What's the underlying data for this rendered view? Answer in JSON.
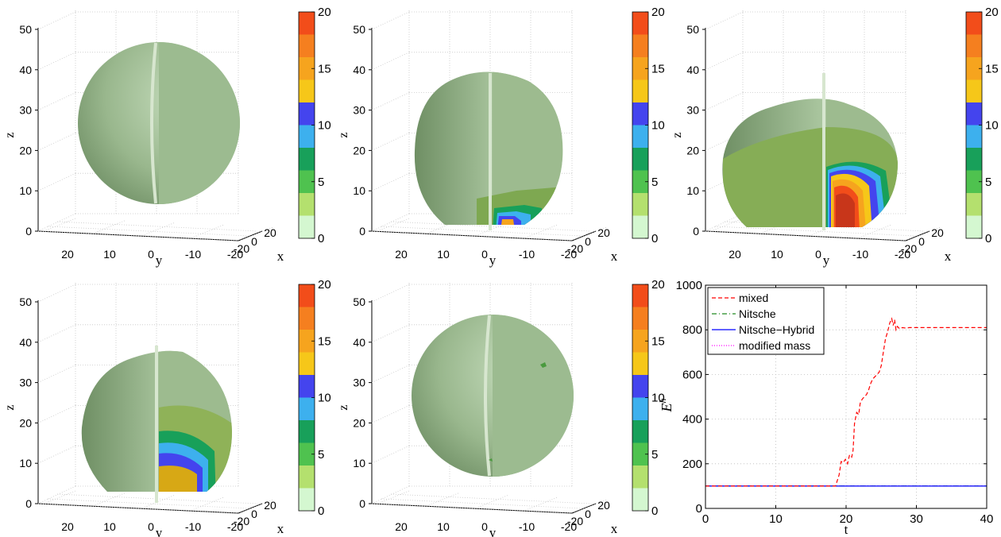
{
  "colorbar": {
    "ticks": [
      "0",
      "5",
      "10",
      "15",
      "20"
    ],
    "colors": [
      "#d4f7d0",
      "#b4e06e",
      "#4fc24f",
      "#18a05a",
      "#3db0ee",
      "#4444ee",
      "#f6c719",
      "#f6a41e",
      "#f57f1f",
      "#f24d1a"
    ]
  },
  "surface_panels": [
    {
      "z_ticks": [
        "0",
        "10",
        "20",
        "30",
        "40",
        "50"
      ],
      "y_ticks": [
        "20",
        "10",
        "0",
        "-10",
        "-20"
      ],
      "x_ticks": [
        "-20",
        "0",
        "20"
      ],
      "z_label": "z",
      "y_label": "y",
      "x_label": "x"
    },
    {
      "z_ticks": [
        "0",
        "10",
        "20",
        "30",
        "40",
        "50"
      ],
      "y_ticks": [
        "20",
        "10",
        "0",
        "-10",
        "-20"
      ],
      "x_ticks": [
        "-20",
        "0",
        "20"
      ],
      "z_label": "z",
      "y_label": "y",
      "x_label": "x"
    },
    {
      "z_ticks": [
        "0",
        "10",
        "20",
        "30",
        "40",
        "50"
      ],
      "y_ticks": [
        "20",
        "10",
        "0",
        "-10",
        "-20"
      ],
      "x_ticks": [
        "-20",
        "0",
        "20"
      ],
      "z_label": "z",
      "y_label": "y",
      "x_label": "x"
    },
    {
      "z_ticks": [
        "0",
        "10",
        "20",
        "30",
        "40",
        "50"
      ],
      "y_ticks": [
        "20",
        "10",
        "0",
        "-10",
        "-20"
      ],
      "x_ticks": [
        "-20",
        "0",
        "20"
      ],
      "z_label": "z",
      "y_label": "y",
      "x_label": "x"
    },
    {
      "z_ticks": [
        "0",
        "10",
        "20",
        "30",
        "40",
        "50"
      ],
      "y_ticks": [
        "20",
        "10",
        "0",
        "-10",
        "-20"
      ],
      "x_ticks": [
        "-20",
        "0",
        "20"
      ],
      "z_label": "z",
      "y_label": "y",
      "x_label": "x"
    }
  ],
  "chart_data": {
    "type": "line",
    "xlabel": "t",
    "ylabel": "E^h",
    "xlim": [
      0,
      40
    ],
    "ylim": [
      0,
      1000
    ],
    "x_ticks": [
      0,
      10,
      20,
      30,
      40
    ],
    "y_ticks": [
      0,
      200,
      400,
      600,
      800,
      1000
    ],
    "grid": true,
    "legend_position": "top-left",
    "series": [
      {
        "name": "mixed",
        "color": "#ff0000",
        "dash": "dashed",
        "x": [
          0,
          18.5,
          19.0,
          19.3,
          19.6,
          19.9,
          20.2,
          20.5,
          20.8,
          21.0,
          21.2,
          21.5,
          21.8,
          22.0,
          22.3,
          22.6,
          22.9,
          23.2,
          23.5,
          23.8,
          24.1,
          24.4,
          24.7,
          25.0,
          25.3,
          25.6,
          25.9,
          26.2,
          26.5,
          26.7,
          26.9,
          27.1,
          27.3,
          27.6,
          28.0,
          28.5,
          29.0,
          40
        ],
        "y": [
          100,
          100,
          150,
          210,
          205,
          220,
          200,
          240,
          230,
          260,
          380,
          430,
          420,
          470,
          490,
          500,
          510,
          530,
          560,
          580,
          590,
          600,
          610,
          640,
          700,
          760,
          790,
          830,
          850,
          820,
          845,
          800,
          815,
          805,
          810,
          808,
          810,
          810
        ]
      },
      {
        "name": "Nitsche",
        "color": "#228b22",
        "dash": "dashdot",
        "x": [
          0,
          40
        ],
        "y": [
          100,
          100
        ]
      },
      {
        "name": "Nitsche−Hybrid",
        "color": "#0000ff",
        "dash": "solid",
        "x": [
          0,
          40
        ],
        "y": [
          100,
          100
        ]
      },
      {
        "name": "modified mass",
        "color": "#ff00ff",
        "dash": "dotted",
        "x": [
          0,
          40
        ],
        "y": [
          100,
          100
        ]
      }
    ]
  }
}
